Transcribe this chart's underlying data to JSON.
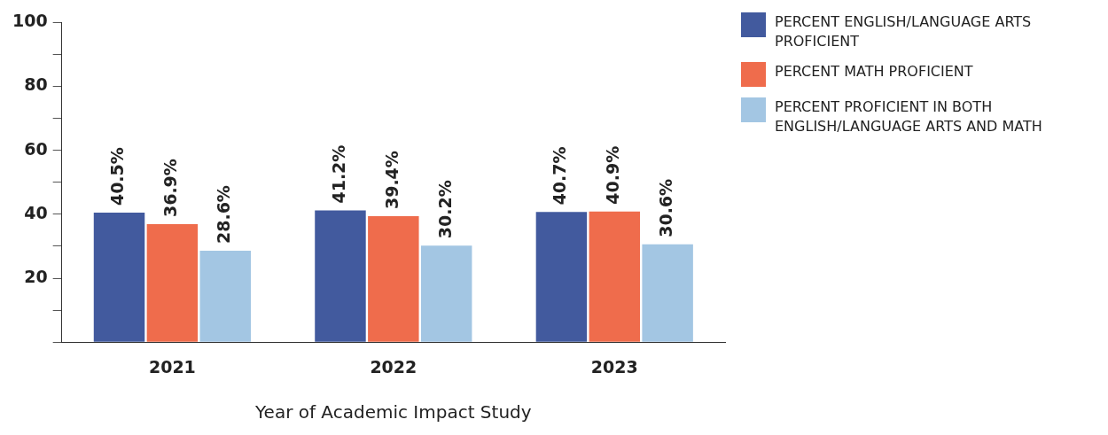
{
  "chart_data": {
    "type": "bar",
    "xlabel": "Year of Academic Impact Study",
    "categories": [
      "2021",
      "2022",
      "2023"
    ],
    "series": [
      {
        "name": "PERCENT ENGLISH/LANGUAGE ARTS PROFICIENT",
        "color": "#425a9e",
        "values": [
          40.5,
          41.2,
          40.7
        ],
        "value_labels": [
          "40.5%",
          "41.2%",
          "40.7%"
        ]
      },
      {
        "name": "PERCENT MATH PROFICIENT",
        "color": "#ef6c4c",
        "values": [
          36.9,
          39.4,
          40.9
        ],
        "value_labels": [
          "36.9%",
          "39.4%",
          "40.9%"
        ]
      },
      {
        "name": "PERCENT PROFICIENT IN BOTH ENGLISH/LANGUAGE ARTS AND MATH",
        "color": "#a3c6e3",
        "values": [
          28.6,
          30.2,
          30.6
        ],
        "value_labels": [
          "28.6%",
          "30.2%",
          "30.6%"
        ]
      }
    ],
    "ylim": [
      0,
      100
    ],
    "yticks": [
      {
        "value": 0,
        "label": null
      },
      {
        "value": 10,
        "label": null
      },
      20,
      {
        "value": 30,
        "label": null
      },
      40,
      {
        "value": 50,
        "label": null
      },
      60,
      {
        "value": 70,
        "label": null
      },
      80,
      {
        "value": 90,
        "label": null
      },
      100
    ],
    "grid": false,
    "legend": "top right"
  }
}
